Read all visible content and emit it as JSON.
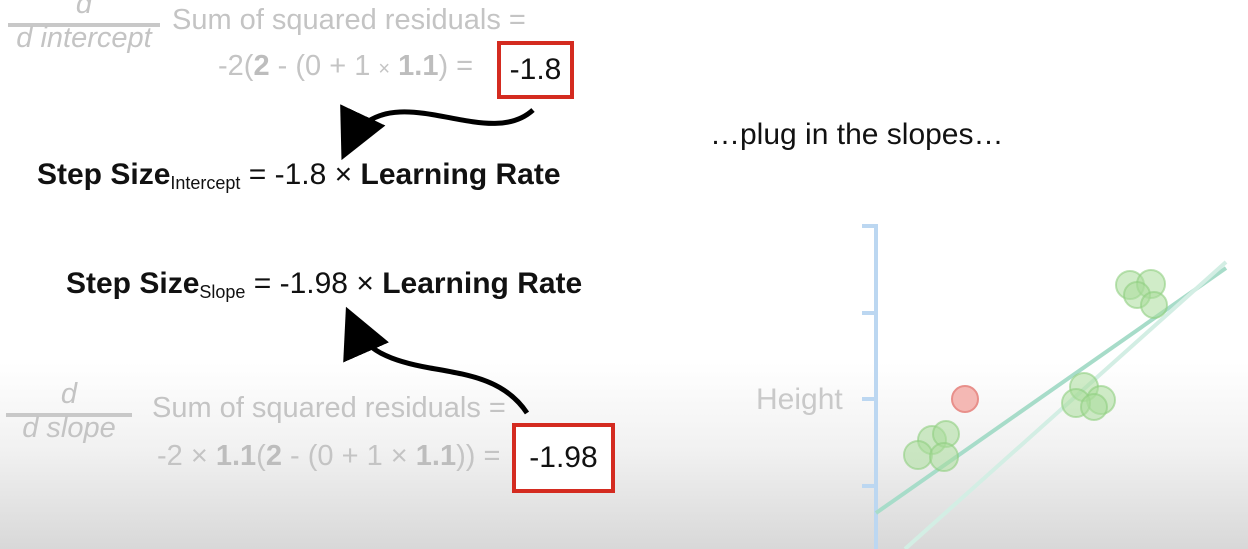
{
  "top": {
    "fraction_numerator": "d",
    "fraction_denominator": "d intercept",
    "line1": "Sum of squared residuals =",
    "line2": {
      "p1": "-2(",
      "b1": "2",
      "p2": " - (0 + 1 ",
      "times": "×",
      "b2": "1.1",
      "p3": ") = "
    },
    "boxed_value": "-1.8"
  },
  "step_intercept": {
    "label": "Step Size",
    "subscript": "Intercept",
    "middle": " = -1.8 × ",
    "rate": "Learning Rate"
  },
  "step_slope": {
    "label": "Step Size",
    "subscript": "Slope",
    "middle": " = -1.98 × ",
    "rate": "Learning Rate"
  },
  "bottom": {
    "fraction_numerator": "d",
    "fraction_denominator": "d slope",
    "line1": "Sum of squared residuals =",
    "line2": {
      "p1": "-2 × ",
      "b1": "1.1",
      "p2": "(",
      "b2": "2",
      "p3": " - (0 + 1 × ",
      "b3": "1.1",
      "p4": ")) = "
    },
    "boxed_value": "-1.98"
  },
  "caption": "…plug in the slopes…",
  "plot": {
    "y_axis_label": "Height",
    "colors": {
      "axis": "#bcd7f1",
      "green_point": "#a9dc9b",
      "red_point": "#f2a7a3",
      "line": "#a7dcc9"
    }
  }
}
